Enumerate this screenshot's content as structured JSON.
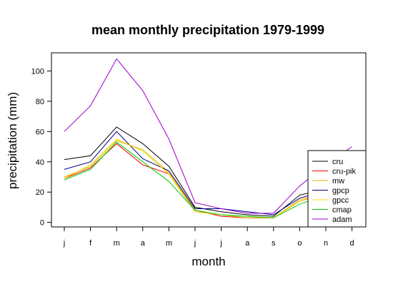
{
  "chart_data": {
    "type": "line",
    "title": "mean monthly precipitation 1979-1999",
    "xlabel": "month",
    "ylabel": "precipitation (mm)",
    "categories": [
      "j",
      "f",
      "m",
      "a",
      "m",
      "j",
      "j",
      "a",
      "s",
      "o",
      "n",
      "d"
    ],
    "ylim": [
      -3,
      112
    ],
    "yticks": [
      0,
      20,
      40,
      60,
      80,
      100
    ],
    "grid": false,
    "legend_position": "bottom-right",
    "series": [
      {
        "name": "cru",
        "color": "#000000",
        "values": [
          41.5,
          44,
          63,
          52,
          37,
          10,
          7,
          5,
          4,
          18,
          22,
          28
        ]
      },
      {
        "name": "cru-pik",
        "color": "#ff0000",
        "values": [
          29,
          36,
          52,
          38,
          32,
          8,
          4,
          3,
          3,
          14,
          19,
          25
        ]
      },
      {
        "name": "mw",
        "color": "#d6b600",
        "values": [
          30,
          37,
          54,
          48,
          33,
          8,
          5,
          3,
          3,
          15,
          20,
          26
        ]
      },
      {
        "name": "gpcp",
        "color": "#00008b",
        "values": [
          35,
          40,
          60,
          42,
          34,
          9,
          9,
          7,
          5,
          16,
          21,
          27
        ]
      },
      {
        "name": "gpcc",
        "color": "#ffd700",
        "values": [
          29,
          38,
          55,
          47,
          32,
          7,
          5,
          4,
          3,
          14,
          20,
          26
        ]
      },
      {
        "name": "cmap",
        "color": "#00cc00",
        "values": [
          28,
          35,
          53,
          40,
          27,
          8,
          5,
          4,
          3,
          12,
          18,
          24
        ]
      },
      {
        "name": "adam",
        "color": "#9900cc",
        "values": [
          60,
          77,
          108,
          87,
          55,
          13,
          9,
          6,
          6,
          24,
          38,
          50
        ]
      }
    ]
  }
}
